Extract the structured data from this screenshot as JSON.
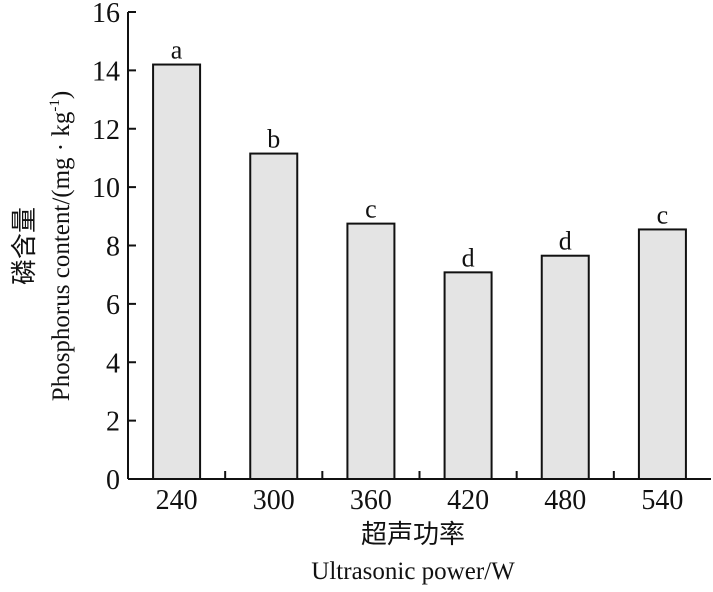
{
  "chart_data": {
    "type": "bar",
    "categories": [
      "240",
      "300",
      "360",
      "420",
      "480",
      "540"
    ],
    "values": [
      14.2,
      11.15,
      8.75,
      7.08,
      7.65,
      8.55
    ],
    "significance_letters": [
      "a",
      "b",
      "c",
      "d",
      "d",
      "c"
    ],
    "ylim": [
      0,
      16
    ],
    "yticks": [
      0,
      2,
      4,
      6,
      8,
      10,
      12,
      14,
      16
    ],
    "xlabel_cn": "超声功率",
    "xlabel_en": "Ultrasonic power/W",
    "ylabel_cn": "磷含量",
    "ylabel_en": "Phosphorus content/(mg · kg",
    "ylabel_en_sup": "-1",
    "ylabel_en_tail": ")",
    "bar_color": "#e4e4e4",
    "grid": false
  }
}
